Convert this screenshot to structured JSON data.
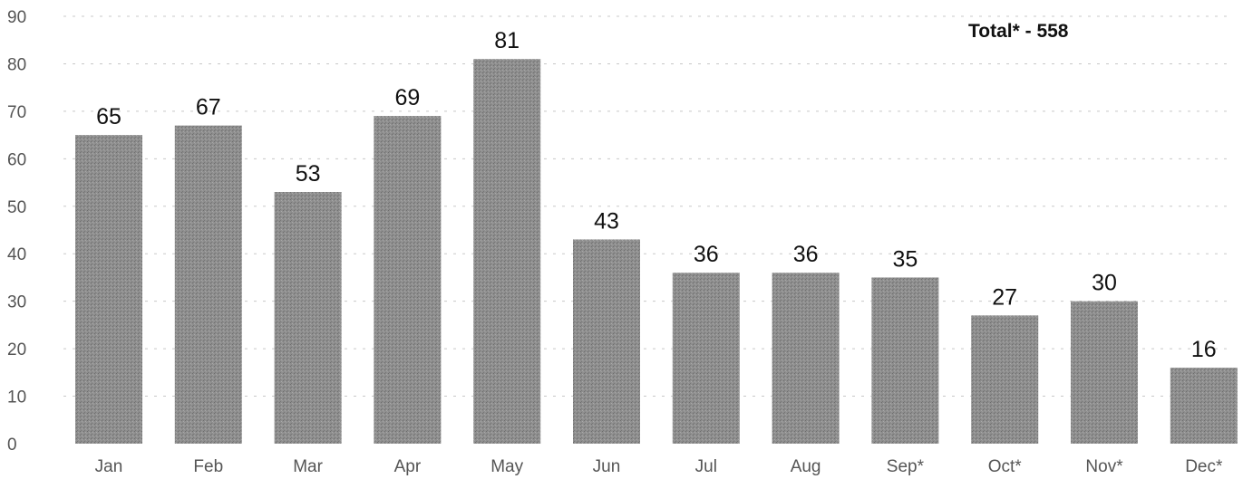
{
  "chart_data": {
    "type": "bar",
    "categories": [
      "Jan",
      "Feb",
      "Mar",
      "Apr",
      "May",
      "Jun",
      "Jul",
      "Aug",
      "Sep*",
      "Oct*",
      "Nov*",
      "Dec*"
    ],
    "values": [
      65,
      67,
      53,
      69,
      81,
      43,
      36,
      36,
      35,
      27,
      30,
      16
    ],
    "data_labels": [
      "65",
      "67",
      "53",
      "69",
      "81",
      "43",
      "36",
      "36",
      "35",
      "27",
      "30",
      "16"
    ],
    "yticks": [
      "0",
      "10",
      "20",
      "30",
      "40",
      "50",
      "60",
      "70",
      "80",
      "90"
    ],
    "ylim": [
      0,
      90
    ],
    "annotation": "Total* - 558",
    "grid": true,
    "bar_color": "#8c8c8c",
    "title": "",
    "xlabel": "",
    "ylabel": ""
  }
}
